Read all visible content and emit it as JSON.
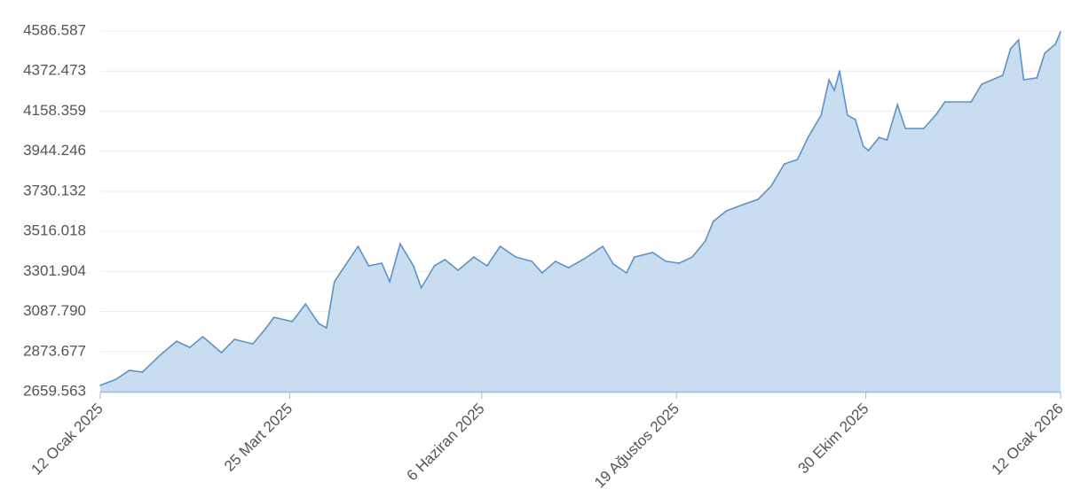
{
  "chart_data": {
    "type": "area",
    "title": "",
    "xlabel": "",
    "ylabel": "",
    "ylim": [
      2659.563,
      4586.587
    ],
    "xlim": [
      "2025-01-12",
      "2026-01-12"
    ],
    "grid": {
      "horizontal": true,
      "vertical": false
    },
    "y_ticks": [
      "2659.563",
      "2873.677",
      "3087.790",
      "3301.904",
      "3516.018",
      "3730.132",
      "3944.246",
      "4158.359",
      "4372.473",
      "4586.587"
    ],
    "x_ticks": [
      {
        "date": "2025-01-12",
        "label": "12 Ocak 2025"
      },
      {
        "date": "2025-03-25",
        "label": "25 Mart 2025"
      },
      {
        "date": "2025-06-06",
        "label": "6 Haziran 2025"
      },
      {
        "date": "2025-08-19",
        "label": "19 Ağustos 2025"
      },
      {
        "date": "2025-10-30",
        "label": "30 Ekim 2025"
      },
      {
        "date": "2026-01-12",
        "label": "12 Ocak 2026"
      }
    ],
    "colors": {
      "line": "#5b93c9",
      "fill": "#c9ddf1",
      "grid": "#ececec",
      "axis": "#9fb8d2"
    },
    "x": [
      "2025-01-12",
      "2025-01-18",
      "2025-01-23",
      "2025-01-28",
      "2025-02-04",
      "2025-02-10",
      "2025-02-15",
      "2025-02-20",
      "2025-02-27",
      "2025-03-04",
      "2025-03-11",
      "2025-03-16",
      "2025-03-19",
      "2025-03-26",
      "2025-03-31",
      "2025-04-05",
      "2025-04-08",
      "2025-04-11",
      "2025-04-15",
      "2025-04-20",
      "2025-04-24",
      "2025-04-29",
      "2025-05-02",
      "2025-05-06",
      "2025-05-11",
      "2025-05-14",
      "2025-05-19",
      "2025-05-23",
      "2025-05-28",
      "2025-06-03",
      "2025-06-08",
      "2025-06-13",
      "2025-06-19",
      "2025-06-25",
      "2025-06-29",
      "2025-07-04",
      "2025-07-09",
      "2025-07-15",
      "2025-07-22",
      "2025-07-26",
      "2025-07-31",
      "2025-08-03",
      "2025-08-10",
      "2025-08-15",
      "2025-08-20",
      "2025-08-25",
      "2025-08-30",
      "2025-09-02",
      "2025-09-07",
      "2025-09-14",
      "2025-09-19",
      "2025-09-24",
      "2025-09-29",
      "2025-10-04",
      "2025-10-08",
      "2025-10-13",
      "2025-10-16",
      "2025-10-18",
      "2025-10-20",
      "2025-10-23",
      "2025-10-26",
      "2025-10-29",
      "2025-10-31",
      "2025-11-04",
      "2025-11-07",
      "2025-11-11",
      "2025-11-14",
      "2025-11-21",
      "2025-11-26",
      "2025-11-29",
      "2025-12-09",
      "2025-12-13",
      "2025-12-21",
      "2025-12-24",
      "2025-12-27",
      "2025-12-29",
      "2026-01-03",
      "2026-01-06",
      "2026-01-10",
      "2026-01-12"
    ],
    "values": [
      2693,
      2726,
      2773,
      2764,
      2858,
      2929,
      2896,
      2953,
      2868,
      2939,
      2915,
      3000,
      3057,
      3034,
      3128,
      3024,
      3000,
      3247,
      3332,
      3436,
      3332,
      3346,
      3247,
      3450,
      3332,
      3214,
      3332,
      3365,
      3308,
      3379,
      3332,
      3436,
      3379,
      3356,
      3294,
      3356,
      3322,
      3370,
      3436,
      3341,
      3294,
      3379,
      3403,
      3356,
      3346,
      3379,
      3465,
      3569,
      3626,
      3663,
      3687,
      3758,
      3876,
      3900,
      4018,
      4137,
      4326,
      4270,
      4374,
      4137,
      4113,
      3971,
      3948,
      4018,
      4004,
      4194,
      4066,
      4066,
      4146,
      4208,
      4208,
      4302,
      4350,
      4492,
      4539,
      4326,
      4336,
      4468,
      4516,
      4582
    ]
  }
}
